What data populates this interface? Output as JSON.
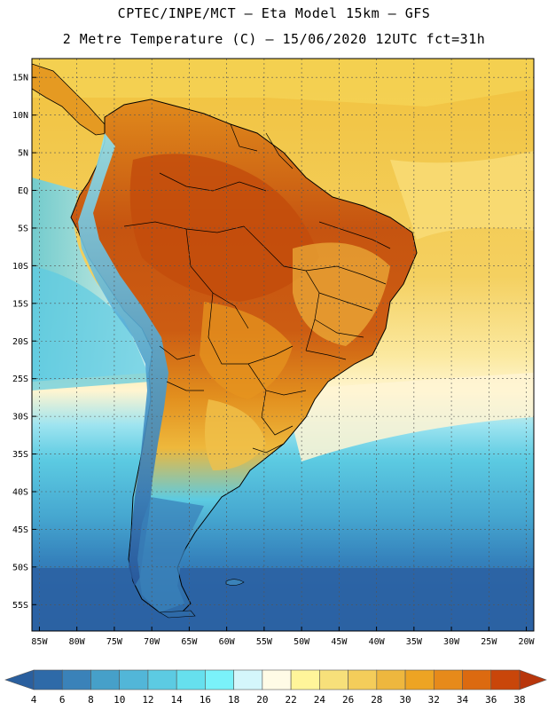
{
  "title": {
    "line1": "CPTEC/INPE/MCT – Eta Model 15km – GFS",
    "line2": "2 Metre Temperature (C) – 15/06/2020 12UTC fct=31h"
  },
  "map": {
    "lon_range": [
      -86,
      -19
    ],
    "lat_range": [
      -58.5,
      17.5
    ],
    "lat_ticks": [
      {
        "value": 15,
        "label": "15N"
      },
      {
        "value": 10,
        "label": "10N"
      },
      {
        "value": 5,
        "label": "5N"
      },
      {
        "value": 0,
        "label": "EQ"
      },
      {
        "value": -5,
        "label": "5S"
      },
      {
        "value": -10,
        "label": "10S"
      },
      {
        "value": -15,
        "label": "15S"
      },
      {
        "value": -20,
        "label": "20S"
      },
      {
        "value": -25,
        "label": "25S"
      },
      {
        "value": -30,
        "label": "30S"
      },
      {
        "value": -35,
        "label": "35S"
      },
      {
        "value": -40,
        "label": "40S"
      },
      {
        "value": -45,
        "label": "45S"
      },
      {
        "value": -50,
        "label": "50S"
      },
      {
        "value": -55,
        "label": "55S"
      }
    ],
    "lon_ticks": [
      {
        "value": -85,
        "label": "85W"
      },
      {
        "value": -80,
        "label": "80W"
      },
      {
        "value": -75,
        "label": "75W"
      },
      {
        "value": -70,
        "label": "70W"
      },
      {
        "value": -65,
        "label": "65W"
      },
      {
        "value": -60,
        "label": "60W"
      },
      {
        "value": -55,
        "label": "55W"
      },
      {
        "value": -50,
        "label": "50W"
      },
      {
        "value": -45,
        "label": "45W"
      },
      {
        "value": -40,
        "label": "40W"
      },
      {
        "value": -35,
        "label": "35W"
      },
      {
        "value": -30,
        "label": "30W"
      },
      {
        "value": -25,
        "label": "25W"
      },
      {
        "value": -20,
        "label": "20W"
      }
    ]
  },
  "colorbar": {
    "levels": [
      "4",
      "6",
      "8",
      "10",
      "12",
      "14",
      "16",
      "18",
      "20",
      "22",
      "24",
      "26",
      "28",
      "30",
      "32",
      "34",
      "36",
      "38"
    ],
    "colors": [
      "#2e6aa8",
      "#3a82b9",
      "#46a0c9",
      "#52b6d8",
      "#5ccbe2",
      "#66e0ee",
      "#7af2fa",
      "#d4f6fb",
      "#fffbe6",
      "#fff59a",
      "#f7e07a",
      "#f4cd5a",
      "#eeb73e",
      "#eda423",
      "#e78a1a",
      "#dc6a10",
      "#c9460a"
    ],
    "low_color": "#2a5f9e",
    "high_color": "#b8360c"
  },
  "palette": {
    "ocean_north": "#f3c845",
    "ocean_mid": "#fff2bd",
    "ocean_south_warm": "#5ccbe2",
    "ocean_south_cold": "#2e6aa8",
    "land_hot": "#c95a10",
    "land_warm": "#e3921e",
    "andes_cold": "#4f8cc4"
  }
}
